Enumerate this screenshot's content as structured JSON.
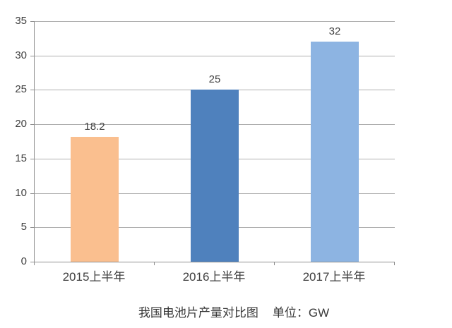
{
  "chart_data": {
    "type": "bar",
    "title": "我国电池片产量对比图",
    "unit_note": "单位：GW",
    "categories": [
      "2015上半年",
      "2016上半年",
      "2017上半年"
    ],
    "values": [
      18.2,
      25,
      32
    ],
    "value_labels": [
      "18.2",
      "25",
      "32"
    ],
    "bar_colors": [
      "#FABF8F",
      "#4F81BD",
      "#8DB4E2"
    ],
    "ylim": [
      0,
      35
    ],
    "yticks": [
      0,
      5,
      10,
      15,
      20,
      25,
      30,
      35
    ],
    "grid": true,
    "legend_position": "none",
    "data_labels": true,
    "colors": {
      "text": "#404040",
      "gridline": "#AFAFAF",
      "axis": "#8F8F8F",
      "background": "#FFFFFF"
    }
  }
}
